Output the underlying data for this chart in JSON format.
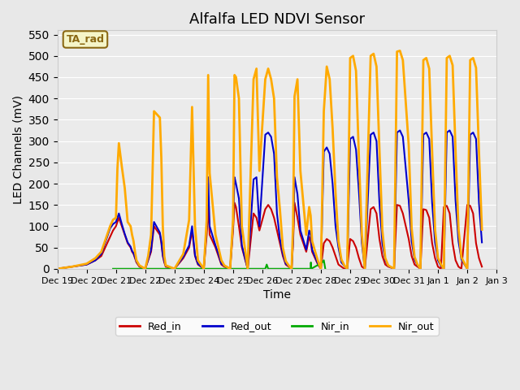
{
  "title": "Alfalfa LED NDVI Sensor",
  "xlabel": "Time",
  "ylabel": "LED Channels (mV)",
  "ylim": [
    0,
    560
  ],
  "yticks": [
    0,
    50,
    100,
    150,
    200,
    250,
    300,
    350,
    400,
    450,
    500,
    550
  ],
  "background_color": "#e8e8e8",
  "plot_bg_color": "#ebebeb",
  "legend_label": "TA_rad",
  "legend_box_color": "#f5f5c8",
  "legend_box_edge": "#8b6914",
  "series": {
    "Red_in": {
      "color": "#cc0000",
      "lw": 1.5
    },
    "Red_out": {
      "color": "#0000cc",
      "lw": 1.5
    },
    "Nir_in": {
      "color": "#00aa00",
      "lw": 1.5
    },
    "Nir_out": {
      "color": "#ffaa00",
      "lw": 2.0
    }
  },
  "x_dates": [
    "Dec 19",
    "Dec 20",
    "Dec 21",
    "Dec 22",
    "Dec 23",
    "Dec 24",
    "Dec 25",
    "Dec 26",
    "Dec 27",
    "Dec 28",
    "Dec 29",
    "Dec 30",
    "Dec 31",
    "Jan 1",
    "Jan 2",
    "Jan 3"
  ],
  "x_numeric": [
    0,
    1,
    2,
    3,
    4,
    5,
    6,
    7,
    8,
    9,
    10,
    11,
    12,
    13,
    14,
    15
  ],
  "Red_in_x": [
    0.0,
    0.5,
    1.0,
    1.3,
    1.5,
    1.6,
    1.7,
    1.8,
    1.9,
    2.0,
    2.05,
    2.1,
    2.2,
    2.3,
    2.4,
    2.5,
    2.55,
    2.6,
    2.65,
    2.7,
    2.8,
    3.0,
    3.1,
    3.2,
    3.3,
    3.5,
    3.55,
    3.6,
    3.65,
    3.7,
    4.0,
    4.3,
    4.5,
    4.6,
    4.7,
    4.8,
    5.0,
    5.1,
    5.15,
    5.2,
    5.4,
    5.5,
    5.6,
    5.7,
    5.9,
    6.0,
    6.05,
    6.1,
    6.2,
    6.3,
    6.5,
    6.7,
    6.8,
    6.9,
    7.1,
    7.2,
    7.3,
    7.4,
    7.5,
    7.6,
    7.7,
    7.8,
    7.9,
    8.0,
    8.05,
    8.1,
    8.2,
    8.3,
    8.5,
    8.6,
    8.65,
    8.7,
    8.9,
    9.0,
    9.1,
    9.2,
    9.3,
    9.4,
    9.5,
    9.6,
    9.7,
    9.8,
    9.9,
    10.0,
    10.1,
    10.2,
    10.3,
    10.4,
    10.5,
    10.7,
    10.8,
    10.9,
    11.0,
    11.1,
    11.2,
    11.3,
    11.5,
    11.6,
    11.7,
    11.8,
    12.0,
    12.1,
    12.2,
    12.3,
    12.4,
    12.5,
    12.6,
    12.7,
    12.8,
    12.9,
    13.0,
    13.1,
    13.2,
    13.3,
    13.4,
    13.5,
    13.6,
    13.7,
    13.8,
    14.0,
    14.1,
    14.2,
    14.3,
    14.4,
    14.5
  ],
  "Red_in_y": [
    0,
    5,
    10,
    20,
    30,
    45,
    60,
    75,
    90,
    100,
    110,
    120,
    100,
    80,
    60,
    50,
    40,
    35,
    25,
    15,
    5,
    0,
    20,
    40,
    100,
    80,
    60,
    30,
    15,
    5,
    0,
    25,
    50,
    90,
    30,
    10,
    0,
    80,
    150,
    80,
    50,
    30,
    10,
    5,
    0,
    90,
    155,
    145,
    100,
    50,
    0,
    130,
    120,
    90,
    140,
    150,
    140,
    120,
    90,
    60,
    30,
    10,
    5,
    0,
    60,
    155,
    120,
    80,
    40,
    75,
    65,
    40,
    10,
    0,
    60,
    70,
    65,
    50,
    30,
    10,
    5,
    0,
    0,
    70,
    65,
    50,
    25,
    5,
    0,
    140,
    145,
    130,
    70,
    30,
    10,
    5,
    0,
    150,
    148,
    130,
    70,
    30,
    10,
    5,
    0,
    140,
    138,
    120,
    60,
    25,
    5,
    0,
    145,
    148,
    130,
    60,
    20,
    5,
    0,
    150,
    148,
    130,
    60,
    25,
    5
  ],
  "Red_out_x": [
    0.0,
    0.5,
    1.0,
    1.3,
    1.5,
    1.6,
    1.7,
    1.8,
    1.9,
    2.0,
    2.05,
    2.1,
    2.2,
    2.3,
    2.4,
    2.5,
    2.55,
    2.6,
    2.65,
    2.7,
    2.8,
    3.0,
    3.1,
    3.2,
    3.3,
    3.5,
    3.55,
    3.6,
    3.65,
    3.7,
    4.0,
    4.3,
    4.5,
    4.6,
    4.7,
    4.8,
    5.0,
    5.1,
    5.15,
    5.2,
    5.4,
    5.5,
    5.6,
    5.7,
    5.9,
    6.0,
    6.05,
    6.1,
    6.2,
    6.3,
    6.5,
    6.7,
    6.8,
    6.9,
    7.1,
    7.2,
    7.3,
    7.4,
    7.5,
    7.6,
    7.7,
    7.8,
    7.9,
    8.0,
    8.05,
    8.1,
    8.2,
    8.3,
    8.5,
    8.6,
    8.65,
    8.7,
    8.9,
    9.0,
    9.1,
    9.2,
    9.3,
    9.4,
    9.5,
    9.6,
    9.7,
    9.8,
    9.9,
    10.0,
    10.1,
    10.2,
    10.3,
    10.4,
    10.5,
    10.7,
    10.8,
    10.9,
    11.0,
    11.1,
    11.2,
    11.3,
    11.5,
    11.6,
    11.7,
    11.8,
    12.0,
    12.1,
    12.2,
    12.3,
    12.4,
    12.5,
    12.6,
    12.7,
    12.8,
    12.9,
    13.0,
    13.1,
    13.2,
    13.3,
    13.4,
    13.5,
    13.6,
    13.7,
    13.8,
    14.0,
    14.1,
    14.2,
    14.3,
    14.4,
    14.5
  ],
  "Red_out_y": [
    0,
    5,
    10,
    20,
    35,
    55,
    75,
    95,
    105,
    110,
    120,
    130,
    105,
    82,
    62,
    52,
    42,
    37,
    27,
    17,
    7,
    0,
    22,
    45,
    110,
    85,
    65,
    33,
    18,
    7,
    0,
    28,
    55,
    100,
    32,
    12,
    0,
    100,
    215,
    100,
    55,
    35,
    12,
    7,
    0,
    105,
    215,
    200,
    165,
    55,
    0,
    210,
    215,
    100,
    315,
    320,
    310,
    270,
    130,
    70,
    35,
    12,
    7,
    0,
    70,
    215,
    175,
    90,
    45,
    90,
    80,
    45,
    12,
    0,
    275,
    285,
    270,
    200,
    100,
    50,
    15,
    7,
    0,
    305,
    310,
    280,
    180,
    60,
    0,
    315,
    320,
    300,
    155,
    60,
    20,
    7,
    0,
    320,
    325,
    310,
    160,
    65,
    22,
    8,
    0,
    315,
    320,
    305,
    155,
    62,
    20,
    7,
    0,
    320,
    325,
    310,
    160,
    65,
    22,
    0,
    315,
    320,
    305,
    155,
    62
  ],
  "Nir_in_x": [
    1.9,
    2.0,
    3.3,
    3.5,
    5.15,
    5.2,
    7.1,
    7.15,
    7.2,
    8.65,
    8.66,
    8.67,
    9.05,
    9.1,
    9.15
  ],
  "Nir_in_y": [
    0,
    0,
    0,
    0,
    0,
    0,
    0,
    10,
    0,
    0,
    15,
    0,
    15,
    20,
    0
  ],
  "Nir_out_x": [
    0.0,
    0.5,
    1.0,
    1.3,
    1.5,
    1.6,
    1.7,
    1.8,
    1.9,
    2.0,
    2.05,
    2.1,
    2.2,
    2.3,
    2.4,
    2.5,
    2.55,
    2.6,
    2.65,
    2.7,
    2.8,
    3.0,
    3.1,
    3.2,
    3.3,
    3.5,
    3.55,
    3.6,
    3.65,
    3.7,
    4.0,
    4.3,
    4.5,
    4.6,
    4.7,
    4.8,
    5.0,
    5.1,
    5.15,
    5.2,
    5.4,
    5.5,
    5.6,
    5.7,
    5.9,
    6.0,
    6.05,
    6.1,
    6.2,
    6.3,
    6.5,
    6.7,
    6.8,
    6.9,
    7.1,
    7.2,
    7.3,
    7.4,
    7.5,
    7.6,
    7.7,
    7.8,
    7.9,
    8.0,
    8.05,
    8.1,
    8.2,
    8.3,
    8.5,
    8.6,
    8.65,
    8.7,
    8.9,
    9.0,
    9.1,
    9.2,
    9.3,
    9.4,
    9.5,
    9.6,
    9.7,
    9.8,
    9.9,
    10.0,
    10.1,
    10.2,
    10.3,
    10.4,
    10.5,
    10.7,
    10.8,
    10.9,
    11.0,
    11.1,
    11.2,
    11.3,
    11.5,
    11.6,
    11.7,
    11.8,
    12.0,
    12.1,
    12.2,
    12.3,
    12.4,
    12.5,
    12.6,
    12.7,
    12.8,
    12.9,
    13.0,
    13.1,
    13.2,
    13.3,
    13.4,
    13.5,
    13.6,
    13.7,
    13.8,
    14.0,
    14.1,
    14.2,
    14.3,
    14.4,
    14.5
  ],
  "Nir_out_y": [
    0,
    5,
    12,
    25,
    40,
    60,
    80,
    100,
    115,
    120,
    235,
    295,
    240,
    190,
    110,
    100,
    80,
    65,
    40,
    20,
    8,
    0,
    30,
    80,
    370,
    355,
    260,
    100,
    30,
    8,
    0,
    35,
    115,
    380,
    100,
    20,
    0,
    115,
    455,
    225,
    80,
    50,
    20,
    8,
    0,
    115,
    455,
    450,
    400,
    100,
    0,
    445,
    470,
    230,
    445,
    470,
    445,
    400,
    215,
    140,
    50,
    18,
    8,
    0,
    100,
    405,
    445,
    230,
    80,
    145,
    125,
    65,
    18,
    0,
    370,
    475,
    445,
    330,
    180,
    65,
    22,
    8,
    0,
    495,
    500,
    465,
    260,
    80,
    0,
    500,
    505,
    475,
    280,
    90,
    25,
    8,
    0,
    510,
    512,
    490,
    290,
    95,
    28,
    10,
    0,
    490,
    495,
    470,
    275,
    92,
    26,
    10,
    0,
    495,
    500,
    478,
    278,
    94,
    27,
    0,
    490,
    495,
    472,
    275,
    92
  ]
}
